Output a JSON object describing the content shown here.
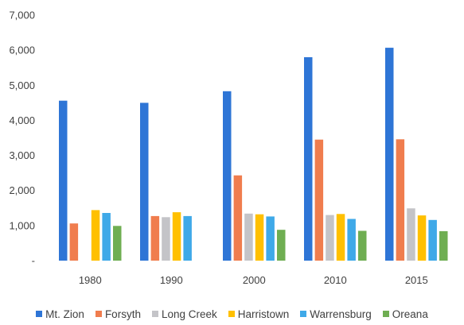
{
  "chart_data": {
    "type": "bar",
    "title": "",
    "xlabel": "",
    "ylabel": "",
    "categories": [
      "1980",
      "1990",
      "2000",
      "2010",
      "2015"
    ],
    "ylim": [
      0,
      7000
    ],
    "yticks": [
      0,
      1000,
      2000,
      3000,
      4000,
      5000,
      6000,
      7000
    ],
    "ytick_labels": [
      "-",
      "1,000",
      "2,000",
      "3,000",
      "4,000",
      "5,000",
      "6,000",
      "7,000"
    ],
    "grid": false,
    "legend_position": "bottom",
    "series": [
      {
        "name": "Mt. Zion",
        "color": "#2E75D6",
        "values": [
          4560,
          4500,
          4830,
          5800,
          6070
        ]
      },
      {
        "name": "Forsyth",
        "color": "#F07D4E",
        "values": [
          1060,
          1270,
          2430,
          3450,
          3460
        ]
      },
      {
        "name": "Long Creek",
        "color": "#C4C4C8",
        "values": [
          null,
          1240,
          1340,
          1300,
          1490
        ]
      },
      {
        "name": "Harristown",
        "color": "#FFC000",
        "values": [
          1440,
          1380,
          1320,
          1330,
          1290
        ]
      },
      {
        "name": "Warrensburg",
        "color": "#3FA9E8",
        "values": [
          1360,
          1270,
          1260,
          1190,
          1160
        ]
      },
      {
        "name": "Oreana",
        "color": "#6FAE52",
        "values": [
          990,
          null,
          880,
          850,
          840
        ]
      }
    ]
  }
}
